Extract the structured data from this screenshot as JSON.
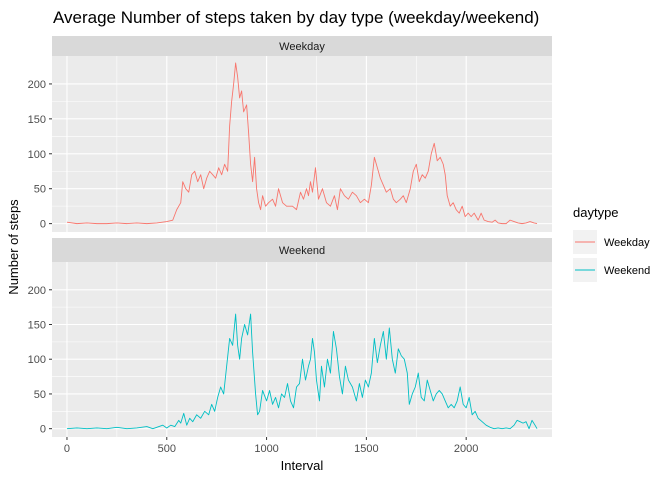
{
  "chart_data": {
    "type": "line",
    "title": "Average Number of steps taken by day type (weekday/weekend)",
    "xlabel": "Interval",
    "ylabel": "Number of steps",
    "xlim": [
      -75,
      2430
    ],
    "ylim": [
      -12,
      240
    ],
    "x_ticks": [
      0,
      500,
      1000,
      1500,
      2000
    ],
    "y_ticks": [
      0,
      50,
      100,
      150,
      200
    ],
    "facet_by": "daytype",
    "legend": {
      "title": "daytype",
      "position": "right",
      "entries": [
        "Weekday",
        "Weekend"
      ]
    },
    "grid": true,
    "series": [
      {
        "name": "Weekday",
        "facet": "Weekday",
        "color": "#F8766D",
        "points": [
          [
            0,
            2
          ],
          [
            50,
            0
          ],
          [
            100,
            1
          ],
          [
            150,
            0
          ],
          [
            200,
            0
          ],
          [
            250,
            1
          ],
          [
            300,
            0
          ],
          [
            350,
            1
          ],
          [
            400,
            0
          ],
          [
            450,
            1
          ],
          [
            500,
            3
          ],
          [
            530,
            5
          ],
          [
            550,
            20
          ],
          [
            570,
            30
          ],
          [
            580,
            60
          ],
          [
            595,
            50
          ],
          [
            610,
            45
          ],
          [
            625,
            70
          ],
          [
            640,
            75
          ],
          [
            655,
            60
          ],
          [
            670,
            70
          ],
          [
            685,
            50
          ],
          [
            700,
            65
          ],
          [
            715,
            75
          ],
          [
            730,
            70
          ],
          [
            745,
            65
          ],
          [
            760,
            80
          ],
          [
            775,
            70
          ],
          [
            790,
            85
          ],
          [
            805,
            75
          ],
          [
            815,
            140
          ],
          [
            825,
            175
          ],
          [
            835,
            200
          ],
          [
            845,
            230
          ],
          [
            855,
            210
          ],
          [
            865,
            180
          ],
          [
            875,
            190
          ],
          [
            885,
            160
          ],
          [
            900,
            170
          ],
          [
            910,
            130
          ],
          [
            920,
            85
          ],
          [
            930,
            60
          ],
          [
            940,
            95
          ],
          [
            950,
            50
          ],
          [
            960,
            30
          ],
          [
            970,
            20
          ],
          [
            980,
            40
          ],
          [
            995,
            25
          ],
          [
            1010,
            30
          ],
          [
            1030,
            35
          ],
          [
            1045,
            25
          ],
          [
            1060,
            50
          ],
          [
            1080,
            30
          ],
          [
            1100,
            25
          ],
          [
            1130,
            25
          ],
          [
            1150,
            20
          ],
          [
            1170,
            45
          ],
          [
            1185,
            35
          ],
          [
            1200,
            50
          ],
          [
            1210,
            40
          ],
          [
            1220,
            60
          ],
          [
            1230,
            45
          ],
          [
            1245,
            80
          ],
          [
            1260,
            35
          ],
          [
            1280,
            50
          ],
          [
            1300,
            30
          ],
          [
            1320,
            25
          ],
          [
            1340,
            40
          ],
          [
            1355,
            20
          ],
          [
            1370,
            50
          ],
          [
            1390,
            40
          ],
          [
            1410,
            35
          ],
          [
            1430,
            45
          ],
          [
            1450,
            40
          ],
          [
            1470,
            30
          ],
          [
            1490,
            35
          ],
          [
            1510,
            30
          ],
          [
            1525,
            55
          ],
          [
            1540,
            95
          ],
          [
            1555,
            80
          ],
          [
            1570,
            65
          ],
          [
            1585,
            55
          ],
          [
            1600,
            45
          ],
          [
            1620,
            50
          ],
          [
            1635,
            35
          ],
          [
            1650,
            30
          ],
          [
            1670,
            35
          ],
          [
            1685,
            40
          ],
          [
            1700,
            30
          ],
          [
            1720,
            50
          ],
          [
            1735,
            75
          ],
          [
            1750,
            85
          ],
          [
            1765,
            60
          ],
          [
            1780,
            70
          ],
          [
            1795,
            65
          ],
          [
            1810,
            75
          ],
          [
            1825,
            100
          ],
          [
            1840,
            115
          ],
          [
            1855,
            90
          ],
          [
            1870,
            95
          ],
          [
            1885,
            85
          ],
          [
            1895,
            70
          ],
          [
            1905,
            40
          ],
          [
            1920,
            25
          ],
          [
            1935,
            30
          ],
          [
            1950,
            20
          ],
          [
            1965,
            15
          ],
          [
            1980,
            25
          ],
          [
            1995,
            10
          ],
          [
            2010,
            15
          ],
          [
            2025,
            10
          ],
          [
            2040,
            15
          ],
          [
            2060,
            5
          ],
          [
            2075,
            15
          ],
          [
            2090,
            5
          ],
          [
            2110,
            3
          ],
          [
            2130,
            2
          ],
          [
            2145,
            5
          ],
          [
            2160,
            1
          ],
          [
            2180,
            0
          ],
          [
            2200,
            0
          ],
          [
            2220,
            5
          ],
          [
            2240,
            3
          ],
          [
            2260,
            1
          ],
          [
            2280,
            0
          ],
          [
            2300,
            1
          ],
          [
            2320,
            3
          ],
          [
            2340,
            1
          ],
          [
            2355,
            0
          ]
        ]
      },
      {
        "name": "Weekend",
        "facet": "Weekend",
        "color": "#00BFC4",
        "points": [
          [
            0,
            0
          ],
          [
            50,
            1
          ],
          [
            100,
            0
          ],
          [
            150,
            1
          ],
          [
            200,
            0
          ],
          [
            250,
            2
          ],
          [
            300,
            0
          ],
          [
            350,
            1
          ],
          [
            400,
            3
          ],
          [
            430,
            0
          ],
          [
            450,
            2
          ],
          [
            480,
            5
          ],
          [
            500,
            1
          ],
          [
            520,
            5
          ],
          [
            540,
            3
          ],
          [
            560,
            12
          ],
          [
            570,
            8
          ],
          [
            585,
            22
          ],
          [
            600,
            5
          ],
          [
            615,
            15
          ],
          [
            630,
            10
          ],
          [
            650,
            20
          ],
          [
            670,
            15
          ],
          [
            690,
            25
          ],
          [
            710,
            20
          ],
          [
            725,
            35
          ],
          [
            740,
            25
          ],
          [
            755,
            45
          ],
          [
            770,
            60
          ],
          [
            785,
            50
          ],
          [
            800,
            90
          ],
          [
            815,
            130
          ],
          [
            830,
            120
          ],
          [
            845,
            165
          ],
          [
            855,
            120
          ],
          [
            865,
            100
          ],
          [
            875,
            130
          ],
          [
            890,
            150
          ],
          [
            905,
            135
          ],
          [
            920,
            165
          ],
          [
            930,
            110
          ],
          [
            945,
            50
          ],
          [
            955,
            20
          ],
          [
            965,
            25
          ],
          [
            980,
            55
          ],
          [
            1000,
            40
          ],
          [
            1015,
            55
          ],
          [
            1030,
            35
          ],
          [
            1045,
            45
          ],
          [
            1060,
            30
          ],
          [
            1075,
            50
          ],
          [
            1090,
            45
          ],
          [
            1105,
            65
          ],
          [
            1120,
            40
          ],
          [
            1135,
            30
          ],
          [
            1150,
            60
          ],
          [
            1165,
            65
          ],
          [
            1180,
            100
          ],
          [
            1195,
            70
          ],
          [
            1210,
            90
          ],
          [
            1220,
            100
          ],
          [
            1230,
            130
          ],
          [
            1240,
            110
          ],
          [
            1250,
            70
          ],
          [
            1265,
            40
          ],
          [
            1275,
            90
          ],
          [
            1290,
            60
          ],
          [
            1305,
            100
          ],
          [
            1320,
            80
          ],
          [
            1335,
            140
          ],
          [
            1350,
            115
          ],
          [
            1365,
            75
          ],
          [
            1380,
            50
          ],
          [
            1395,
            90
          ],
          [
            1410,
            70
          ],
          [
            1430,
            60
          ],
          [
            1450,
            40
          ],
          [
            1465,
            65
          ],
          [
            1480,
            45
          ],
          [
            1495,
            70
          ],
          [
            1510,
            60
          ],
          [
            1525,
            80
          ],
          [
            1540,
            130
          ],
          [
            1555,
            95
          ],
          [
            1570,
            120
          ],
          [
            1585,
            140
          ],
          [
            1600,
            100
          ],
          [
            1615,
            145
          ],
          [
            1630,
            100
          ],
          [
            1645,
            80
          ],
          [
            1660,
            115
          ],
          [
            1675,
            105
          ],
          [
            1690,
            100
          ],
          [
            1705,
            80
          ],
          [
            1715,
            35
          ],
          [
            1730,
            50
          ],
          [
            1745,
            60
          ],
          [
            1760,
            80
          ],
          [
            1775,
            45
          ],
          [
            1790,
            40
          ],
          [
            1805,
            70
          ],
          [
            1820,
            55
          ],
          [
            1835,
            40
          ],
          [
            1850,
            50
          ],
          [
            1865,
            55
          ],
          [
            1880,
            50
          ],
          [
            1895,
            40
          ],
          [
            1910,
            30
          ],
          [
            1925,
            35
          ],
          [
            1940,
            30
          ],
          [
            1955,
            40
          ],
          [
            1970,
            60
          ],
          [
            1985,
            35
          ],
          [
            2000,
            30
          ],
          [
            2015,
            45
          ],
          [
            2030,
            20
          ],
          [
            2045,
            25
          ],
          [
            2060,
            15
          ],
          [
            2080,
            10
          ],
          [
            2100,
            5
          ],
          [
            2120,
            2
          ],
          [
            2140,
            0
          ],
          [
            2160,
            1
          ],
          [
            2180,
            0
          ],
          [
            2200,
            1
          ],
          [
            2220,
            0
          ],
          [
            2240,
            5
          ],
          [
            2255,
            12
          ],
          [
            2270,
            10
          ],
          [
            2285,
            8
          ],
          [
            2300,
            10
          ],
          [
            2315,
            0
          ],
          [
            2330,
            12
          ],
          [
            2345,
            5
          ],
          [
            2355,
            0
          ]
        ]
      }
    ]
  }
}
